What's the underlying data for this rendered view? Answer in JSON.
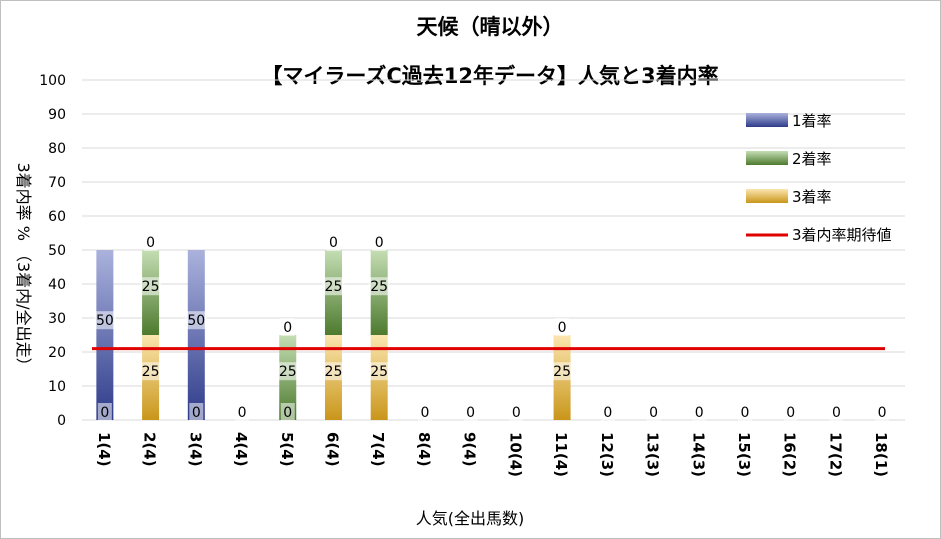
{
  "chart_data": {
    "type": "bar",
    "stacked": true,
    "title": "天候（晴以外）",
    "subtitle": "【マイラーズC過去12年データ】人気と3着内率",
    "xlabel": "人気(全出馬数)",
    "ylabel": "3着内率 %  （3着内/全出走）",
    "ylim": [
      0,
      100
    ],
    "yticks": [
      0,
      10,
      20,
      30,
      40,
      50,
      60,
      70,
      80,
      90,
      100
    ],
    "grid": true,
    "legend_position": "right",
    "categories": [
      "1(4)",
      "2(4)",
      "3(4)",
      "4(4)",
      "5(4)",
      "6(4)",
      "7(4)",
      "8(4)",
      "9(4)",
      "10(4)",
      "11(4)",
      "12(3)",
      "13(3)",
      "14(3)",
      "15(3)",
      "16(2)",
      "17(2)",
      "18(1)"
    ],
    "series": [
      {
        "name": "3着率",
        "values": [
          0,
          25,
          0,
          0,
          0,
          25,
          25,
          0,
          0,
          0,
          25,
          0,
          0,
          0,
          0,
          0,
          0,
          0
        ],
        "color": "#d4a020"
      },
      {
        "name": "2着率",
        "values": [
          0,
          25,
          0,
          0,
          25,
          25,
          25,
          0,
          0,
          0,
          0,
          0,
          0,
          0,
          0,
          0,
          0,
          0
        ],
        "color": "#5b8a3a"
      },
      {
        "name": "1着率",
        "values": [
          50,
          0,
          50,
          0,
          0,
          0,
          0,
          0,
          0,
          0,
          0,
          0,
          0,
          0,
          0,
          0,
          0,
          0
        ],
        "color": "#3b4a96"
      }
    ],
    "labels": [
      [
        {
          "y": 0,
          "v": "0"
        },
        {
          "y": 27,
          "v": "50"
        }
      ],
      [
        {
          "y": 12,
          "v": "25"
        },
        {
          "y": 37,
          "v": "25"
        },
        {
          "y": 50,
          "v": "0"
        }
      ],
      [
        {
          "y": 0,
          "v": "0"
        },
        {
          "y": 27,
          "v": "50"
        }
      ],
      [
        {
          "y": 0,
          "v": "0"
        }
      ],
      [
        {
          "y": 0,
          "v": "0"
        },
        {
          "y": 12,
          "v": "25"
        },
        {
          "y": 25,
          "v": "0"
        }
      ],
      [
        {
          "y": 12,
          "v": "25"
        },
        {
          "y": 37,
          "v": "25"
        },
        {
          "y": 50,
          "v": "0"
        }
      ],
      [
        {
          "y": 12,
          "v": "25"
        },
        {
          "y": 37,
          "v": "25"
        },
        {
          "y": 50,
          "v": "0"
        }
      ],
      [
        {
          "y": 0,
          "v": "0"
        }
      ],
      [
        {
          "y": 0,
          "v": "0"
        }
      ],
      [
        {
          "y": 0,
          "v": "0"
        }
      ],
      [
        {
          "y": 12,
          "v": "25"
        },
        {
          "y": 25,
          "v": "0"
        }
      ],
      [
        {
          "y": 0,
          "v": "0"
        }
      ],
      [
        {
          "y": 0,
          "v": "0"
        }
      ],
      [
        {
          "y": 0,
          "v": "0"
        }
      ],
      [
        {
          "y": 0,
          "v": "0"
        }
      ],
      [
        {
          "y": 0,
          "v": "0"
        }
      ],
      [
        {
          "y": 0,
          "v": "0"
        }
      ],
      [
        {
          "y": 0,
          "v": "0"
        }
      ]
    ],
    "expected_line": {
      "name": "3着内率期待値",
      "value": 21,
      "color": "#e00000"
    },
    "legend": [
      "1着率",
      "2着率",
      "3着率",
      "3着内率期待値"
    ]
  }
}
